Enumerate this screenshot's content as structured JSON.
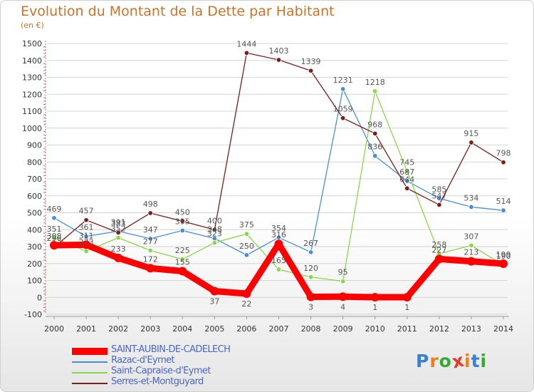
{
  "header": {
    "title": "Evolution du Montant de la Dette par Habitant",
    "subtitle": "(en €)"
  },
  "logo": {
    "text": "Proxiti",
    "letters": [
      "P",
      "r",
      "o",
      "x",
      "i",
      "t",
      "i"
    ],
    "letter_colors": [
      "#3b7fd1",
      "#f07d1a",
      "#3aa835",
      "#e83a2a",
      "#f07d1a",
      "#3b7fd1",
      "#3aa835"
    ]
  },
  "chart_data": {
    "type": "line",
    "title": "Evolution du Montant de la Dette par Habitant",
    "subtitle": "(en €)",
    "xlabel": "",
    "ylabel": "",
    "x": [
      "2000",
      "2001",
      "2002",
      "2003",
      "2004",
      "2005",
      "2006",
      "2007",
      "2008",
      "2009",
      "2010",
      "2011",
      "2012",
      "2013",
      "2014"
    ],
    "ylim": [
      -100,
      1500
    ],
    "yticks": [
      -100,
      0,
      100,
      200,
      300,
      400,
      500,
      600,
      700,
      800,
      900,
      1000,
      1100,
      1200,
      1300,
      1400,
      1500
    ],
    "grid": "horizontal",
    "legend_position": "bottom-left",
    "series": [
      {
        "name": "SAINT-AUBIN-DE-CADELECH",
        "color": "#ff0000",
        "emphasis": true,
        "values": [
          308,
          311,
          233,
          172,
          155,
          37,
          22,
          316,
          3,
          4,
          1,
          1,
          227,
          213,
          199
        ]
      },
      {
        "name": "Razac-d'Eymet",
        "color": "#4a8fd6",
        "values": [
          469,
          361,
          391,
          347,
          395,
          348,
          250,
          354,
          267,
          1231,
          836,
          687,
          585,
          534,
          514
        ]
      },
      {
        "name": "Saint-Capraise-d'Eymet",
        "color": "#8bd64a",
        "values": [
          351,
          273,
          352,
          277,
          225,
          323,
          375,
          165,
          120,
          95,
          1218,
          745,
          258,
          307,
          190
        ]
      },
      {
        "name": "Serres-et-Montguyard",
        "color": "#7a1e1e",
        "values": [
          296,
          457,
          383,
          498,
          450,
          400,
          1444,
          1403,
          1339,
          1059,
          968,
          644,
          547,
          915,
          798
        ]
      }
    ]
  }
}
